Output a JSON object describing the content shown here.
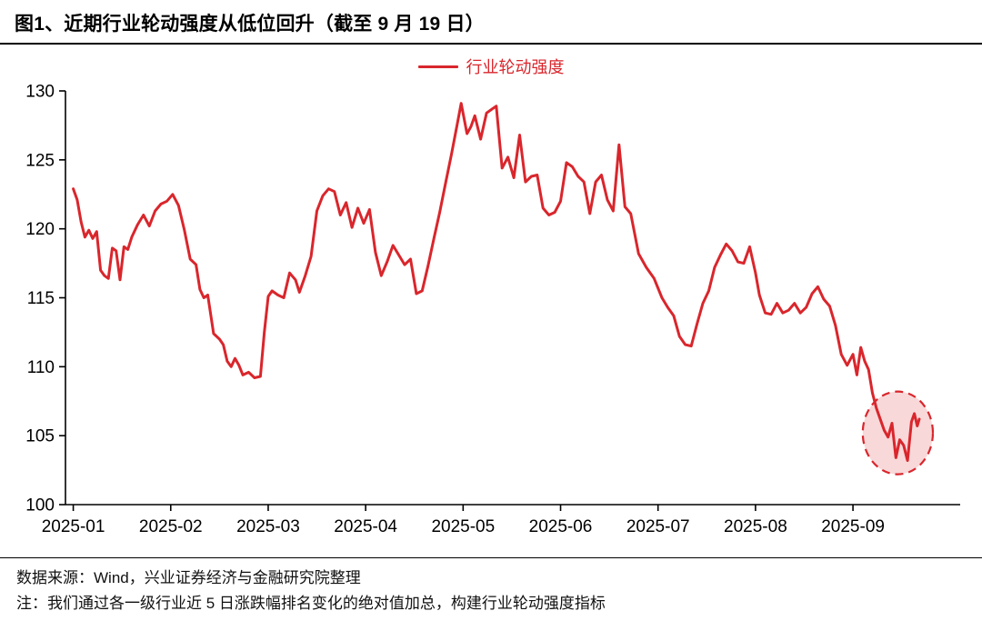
{
  "page": {
    "title": "图1、近期行业轮动强度从低位回升（截至 9 月 19 日）"
  },
  "legend": {
    "label": "行业轮动强度"
  },
  "footer": {
    "source": "数据来源：Wind，兴业证券经济与金融研究院整理",
    "note": "注：我们通过各一级行业近 5 日涨跌幅排名变化的绝对值加总，构建行业轮动强度指标"
  },
  "colors": {
    "line": "#D9262C",
    "axis": "#000000",
    "tick_text": "#000000",
    "highlight_fill_opacity": 0.18
  },
  "chart_data": {
    "type": "line",
    "title": "近期行业轮动强度从低位回升（截至 9 月 19 日）",
    "xlabel": "",
    "ylabel": "",
    "legend": [
      "行业轮动强度"
    ],
    "legend_position": "top-center",
    "grid": false,
    "ylim": [
      100,
      130
    ],
    "y_ticks": [
      100,
      105,
      110,
      115,
      120,
      125,
      130
    ],
    "xlim": [
      -0.08,
      9.1
    ],
    "x_tick_labels": [
      "2025-01",
      "2025-02",
      "2025-03",
      "2025-04",
      "2025-05",
      "2025-06",
      "2025-07",
      "2025-08",
      "2025-09"
    ],
    "x_unit": "month index (0 = 2025-01, fractional = position within month, data ends ~2025-09-19)",
    "highlight_ellipse": {
      "cx": 8.46,
      "cy": 105.2,
      "rx": 0.36,
      "ry": 3.0,
      "style": "dashed"
    },
    "series": [
      {
        "name": "行业轮动强度",
        "points": [
          [
            0,
            122.9
          ],
          [
            0.04,
            122.1
          ],
          [
            0.08,
            120.5
          ],
          [
            0.12,
            119.4
          ],
          [
            0.16,
            119.9
          ],
          [
            0.2,
            119.3
          ],
          [
            0.24,
            119.8
          ],
          [
            0.28,
            117
          ],
          [
            0.32,
            116.6
          ],
          [
            0.36,
            116.4
          ],
          [
            0.4,
            118.6
          ],
          [
            0.44,
            118.4
          ],
          [
            0.48,
            116.3
          ],
          [
            0.52,
            118.7
          ],
          [
            0.56,
            118.5
          ],
          [
            0.6,
            119.4
          ],
          [
            0.66,
            120.3
          ],
          [
            0.72,
            121
          ],
          [
            0.78,
            120.2
          ],
          [
            0.84,
            121.3
          ],
          [
            0.9,
            121.8
          ],
          [
            0.96,
            122
          ],
          [
            1.02,
            122.5
          ],
          [
            1.08,
            121.7
          ],
          [
            1.14,
            119.9
          ],
          [
            1.2,
            117.8
          ],
          [
            1.26,
            117.4
          ],
          [
            1.3,
            115.6
          ],
          [
            1.34,
            115
          ],
          [
            1.38,
            115.2
          ],
          [
            1.44,
            112.4
          ],
          [
            1.5,
            112
          ],
          [
            1.54,
            111.6
          ],
          [
            1.58,
            110.4
          ],
          [
            1.62,
            110
          ],
          [
            1.66,
            110.6
          ],
          [
            1.7,
            110.1
          ],
          [
            1.74,
            109.4
          ],
          [
            1.8,
            109.6
          ],
          [
            1.86,
            109.2
          ],
          [
            1.92,
            109.3
          ],
          [
            1.96,
            112.5
          ],
          [
            2,
            115.1
          ],
          [
            2.04,
            115.5
          ],
          [
            2.1,
            115.2
          ],
          [
            2.16,
            115
          ],
          [
            2.22,
            116.8
          ],
          [
            2.28,
            116.3
          ],
          [
            2.32,
            115.4
          ],
          [
            2.38,
            116.6
          ],
          [
            2.44,
            118
          ],
          [
            2.5,
            121.3
          ],
          [
            2.56,
            122.4
          ],
          [
            2.62,
            122.9
          ],
          [
            2.68,
            122.7
          ],
          [
            2.74,
            121
          ],
          [
            2.8,
            121.9
          ],
          [
            2.86,
            120.1
          ],
          [
            2.92,
            121.5
          ],
          [
            2.98,
            120.4
          ],
          [
            3.04,
            121.4
          ],
          [
            3.1,
            118.3
          ],
          [
            3.16,
            116.6
          ],
          [
            3.22,
            117.6
          ],
          [
            3.28,
            118.8
          ],
          [
            3.34,
            118.1
          ],
          [
            3.4,
            117.4
          ],
          [
            3.46,
            117.8
          ],
          [
            3.52,
            115.3
          ],
          [
            3.58,
            115.5
          ],
          [
            3.64,
            117.3
          ],
          [
            3.7,
            119.3
          ],
          [
            3.76,
            121.2
          ],
          [
            3.82,
            123.3
          ],
          [
            3.88,
            125.4
          ],
          [
            3.94,
            127.6
          ],
          [
            3.98,
            129.1
          ],
          [
            4.04,
            126.9
          ],
          [
            4.08,
            127.4
          ],
          [
            4.12,
            128.2
          ],
          [
            4.18,
            126.5
          ],
          [
            4.24,
            128.4
          ],
          [
            4.3,
            128.7
          ],
          [
            4.34,
            128.9
          ],
          [
            4.4,
            124.4
          ],
          [
            4.46,
            125.2
          ],
          [
            4.52,
            123.7
          ],
          [
            4.58,
            126.8
          ],
          [
            4.64,
            123.4
          ],
          [
            4.7,
            123.8
          ],
          [
            4.76,
            123.9
          ],
          [
            4.82,
            121.5
          ],
          [
            4.88,
            121
          ],
          [
            4.94,
            121.2
          ],
          [
            5,
            122
          ],
          [
            5.06,
            124.8
          ],
          [
            5.12,
            124.5
          ],
          [
            5.18,
            123.8
          ],
          [
            5.24,
            123.4
          ],
          [
            5.3,
            121.1
          ],
          [
            5.36,
            123.4
          ],
          [
            5.42,
            123.9
          ],
          [
            5.48,
            122.1
          ],
          [
            5.54,
            121.3
          ],
          [
            5.6,
            126.1
          ],
          [
            5.66,
            121.6
          ],
          [
            5.72,
            121.1
          ],
          [
            5.8,
            118.2
          ],
          [
            5.88,
            117.2
          ],
          [
            5.96,
            116.4
          ],
          [
            6.04,
            115
          ],
          [
            6.1,
            114.3
          ],
          [
            6.16,
            113.7
          ],
          [
            6.22,
            112.2
          ],
          [
            6.28,
            111.6
          ],
          [
            6.34,
            111.5
          ],
          [
            6.4,
            113.1
          ],
          [
            6.46,
            114.6
          ],
          [
            6.52,
            115.5
          ],
          [
            6.58,
            117.2
          ],
          [
            6.64,
            118.1
          ],
          [
            6.7,
            118.9
          ],
          [
            6.76,
            118.4
          ],
          [
            6.82,
            117.6
          ],
          [
            6.88,
            117.5
          ],
          [
            6.94,
            118.7
          ],
          [
            7,
            116.8
          ],
          [
            7.04,
            115.2
          ],
          [
            7.1,
            113.9
          ],
          [
            7.16,
            113.8
          ],
          [
            7.22,
            114.6
          ],
          [
            7.28,
            113.9
          ],
          [
            7.34,
            114.1
          ],
          [
            7.4,
            114.6
          ],
          [
            7.46,
            113.9
          ],
          [
            7.52,
            114.3
          ],
          [
            7.58,
            115.3
          ],
          [
            7.64,
            115.8
          ],
          [
            7.7,
            114.9
          ],
          [
            7.76,
            114.4
          ],
          [
            7.82,
            113
          ],
          [
            7.88,
            110.9
          ],
          [
            7.94,
            110.1
          ],
          [
            8,
            110.9
          ],
          [
            8.04,
            109.4
          ],
          [
            8.08,
            111.4
          ],
          [
            8.12,
            110.4
          ],
          [
            8.16,
            109.8
          ],
          [
            8.2,
            108.1
          ],
          [
            8.24,
            107
          ],
          [
            8.28,
            106.2
          ],
          [
            8.32,
            105.4
          ],
          [
            8.36,
            104.9
          ],
          [
            8.4,
            105.9
          ],
          [
            8.44,
            103.4
          ],
          [
            8.48,
            104.7
          ],
          [
            8.52,
            104.3
          ],
          [
            8.56,
            103.2
          ],
          [
            8.6,
            106
          ],
          [
            8.63,
            106.6
          ],
          [
            8.66,
            105.7
          ],
          [
            8.68,
            106.2
          ]
        ]
      }
    ]
  }
}
